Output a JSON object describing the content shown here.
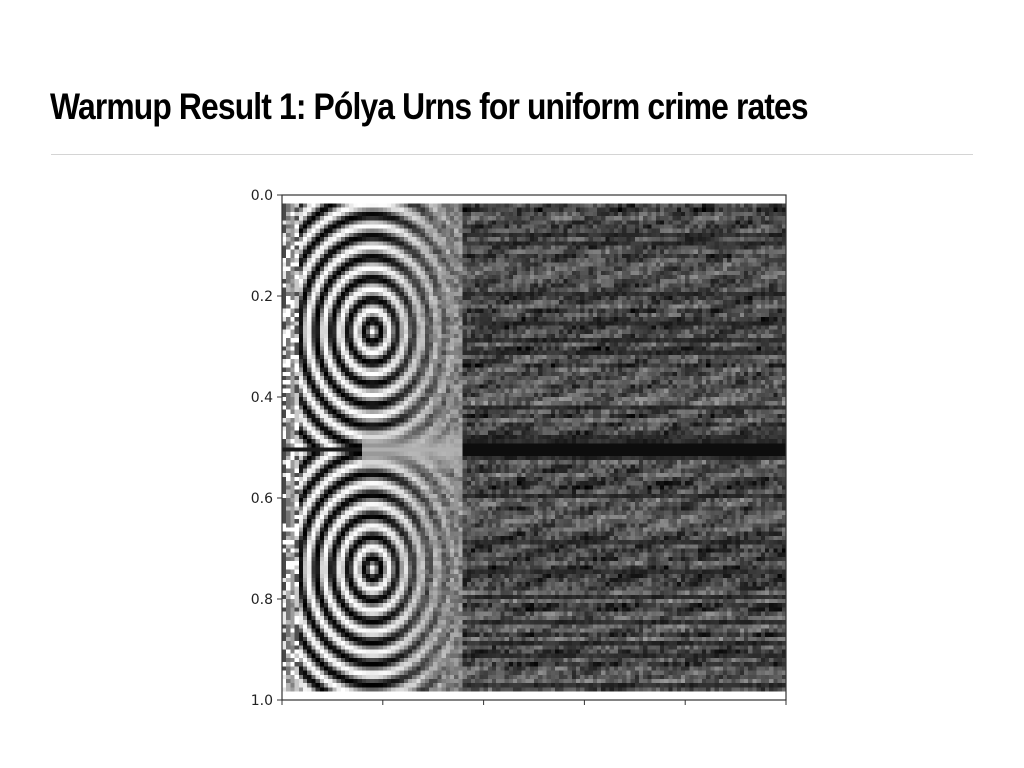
{
  "slide": {
    "title": "Warmup Result 1: Pólya Urns for uniform crime rates"
  },
  "chart_data": {
    "type": "heatmap",
    "title": "",
    "xlabel": "",
    "ylabel": "",
    "colormap": "grayscale",
    "y_tick_labels": [
      "0.0",
      "0.2",
      "0.4",
      "0.6",
      "0.8",
      "1.0"
    ],
    "x_tick_labels": [
      "",
      "",
      "",
      "",
      "",
      ""
    ],
    "ylim": [
      1.0,
      0.0
    ]
  }
}
